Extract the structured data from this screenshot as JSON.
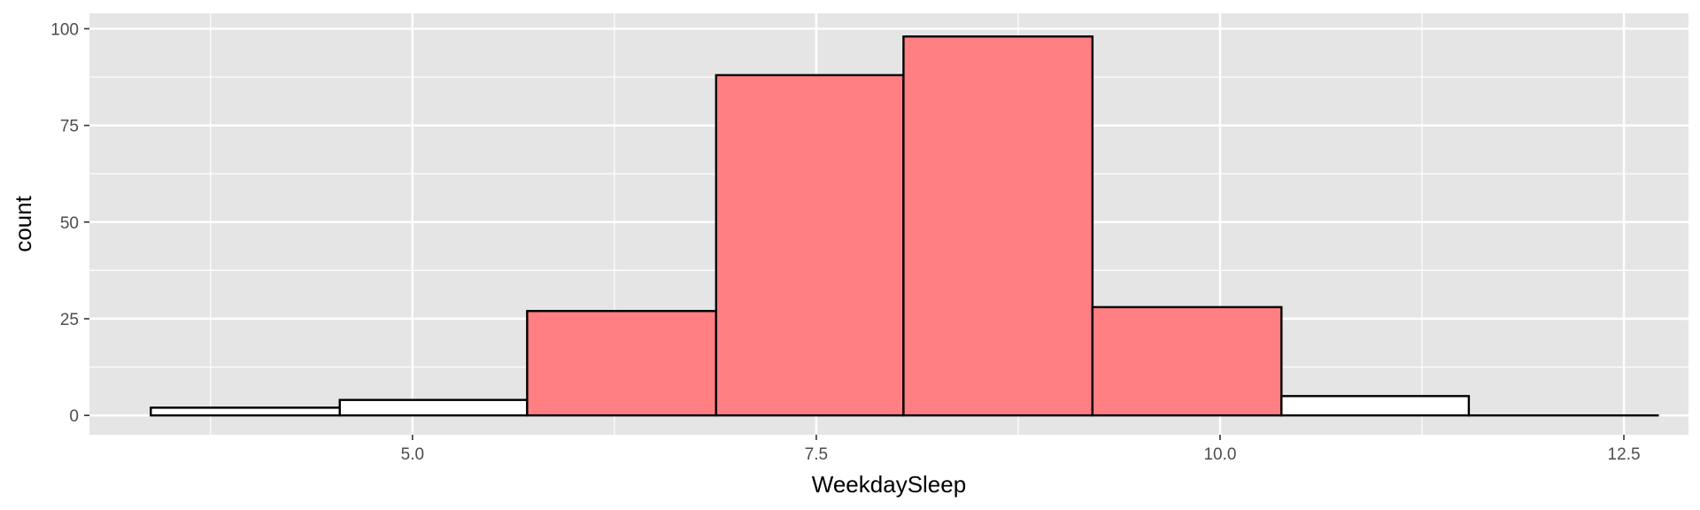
{
  "chart_data": {
    "type": "bar",
    "xlabel": "WeekdaySleep",
    "ylabel": "count",
    "xlim": [
      3.0,
      12.9
    ],
    "ylim": [
      -5.0,
      104.0
    ],
    "x_ticks": [
      {
        "value": 5.0,
        "label": "5.0"
      },
      {
        "value": 7.5,
        "label": "7.5"
      },
      {
        "value": 10.0,
        "label": "10.0"
      },
      {
        "value": 12.5,
        "label": "12.5"
      }
    ],
    "x_minor_gridlines": [
      3.75,
      6.25,
      8.75,
      11.25
    ],
    "y_ticks": [
      {
        "value": 0,
        "label": "0"
      },
      {
        "value": 25,
        "label": "25"
      },
      {
        "value": 50,
        "label": "50"
      },
      {
        "value": 75,
        "label": "75"
      },
      {
        "value": 100,
        "label": "100"
      }
    ],
    "y_minor_gridlines": [
      12.5,
      37.5,
      62.5,
      87.5
    ],
    "grid": true,
    "bins": [
      {
        "x0": 3.38,
        "x1": 4.55,
        "count": 2,
        "highlighted": false
      },
      {
        "x0": 4.55,
        "x1": 5.71,
        "count": 4,
        "highlighted": false
      },
      {
        "x0": 5.71,
        "x1": 6.88,
        "count": 27,
        "highlighted": true
      },
      {
        "x0": 6.88,
        "x1": 8.04,
        "count": 88,
        "highlighted": true
      },
      {
        "x0": 8.04,
        "x1": 9.21,
        "count": 98,
        "highlighted": true
      },
      {
        "x0": 9.21,
        "x1": 10.38,
        "count": 28,
        "highlighted": true
      },
      {
        "x0": 10.38,
        "x1": 11.54,
        "count": 5,
        "highlighted": false
      },
      {
        "x0": 11.54,
        "x1": 12.71,
        "count": 0,
        "highlighted": false
      }
    ],
    "colors": {
      "panel_background": "#e5e5e5",
      "gridline": "#ffffff",
      "highlight_fill": "#ff7f82",
      "default_fill": "#ffffff",
      "bar_outline": "#000000",
      "tick_mark": "#333333"
    }
  }
}
